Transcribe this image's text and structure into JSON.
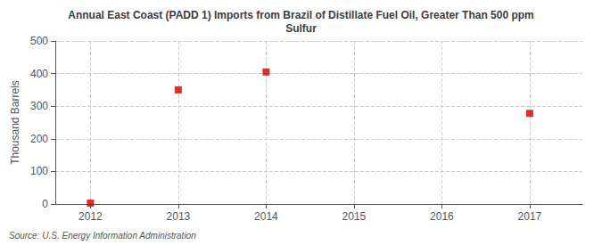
{
  "chart_data": {
    "type": "scatter",
    "title": "Annual East Coast (PADD 1) Imports from Brazil of Distillate Fuel Oil, Greater Than 500 ppm\nSulfur",
    "ylabel": "Thousand Barrels",
    "source": "Source: U.S. Energy Information Administration",
    "x": [
      2012,
      2013,
      2014,
      2015,
      2016,
      2017
    ],
    "values": [
      3,
      350,
      405,
      null,
      null,
      278
    ],
    "color": "#cc0000",
    "marker": "square",
    "xlim": [
      2011.6,
      2017.6
    ],
    "xticks": [
      2012,
      2013,
      2014,
      2015,
      2016,
      2017
    ],
    "ylim": [
      0,
      500
    ],
    "yticks": [
      0,
      100,
      200,
      300,
      400,
      500
    ],
    "grid": true
  }
}
